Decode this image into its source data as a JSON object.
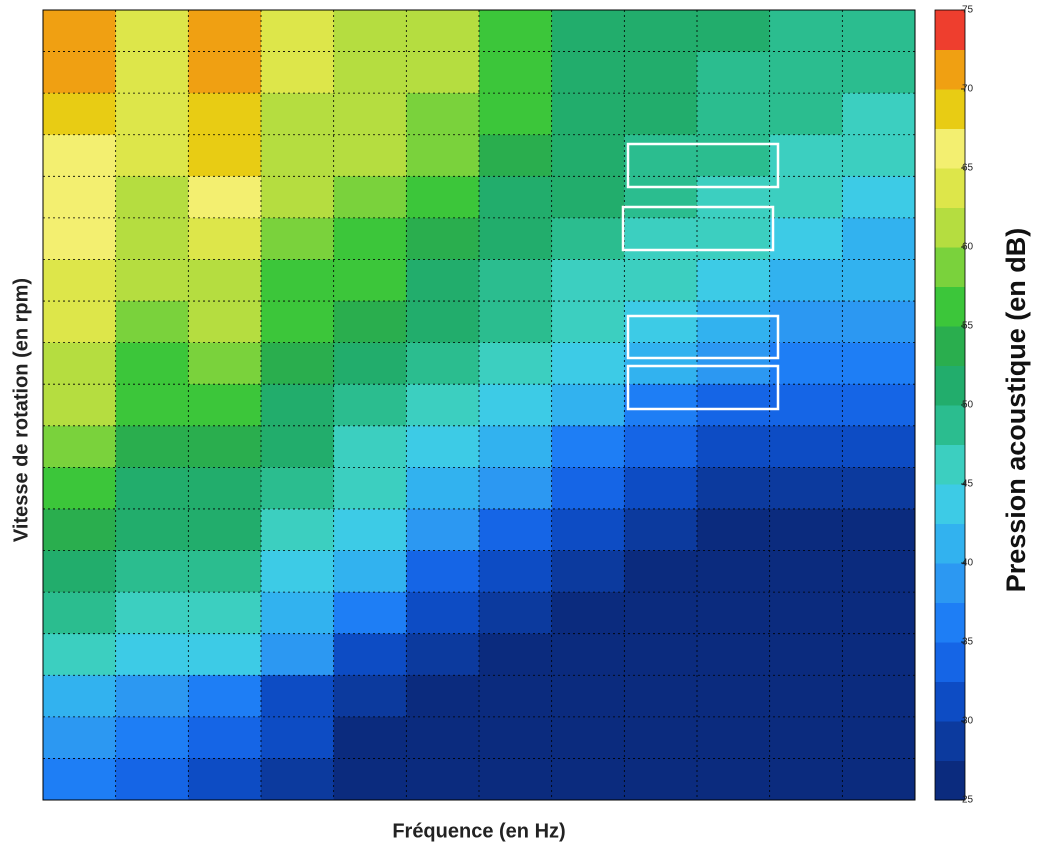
{
  "chart_data": {
    "type": "heatmap",
    "x_label": "Fréquence (en Hz)",
    "y_label": "Vitesse de rotation (en rpm)",
    "colorbar_label": "Pression acoustique (en dB)",
    "zlim": [
      25,
      75
    ],
    "zticks": [
      25,
      30,
      35,
      40,
      45,
      50,
      55,
      60,
      65,
      70,
      75
    ],
    "grid": true,
    "colorscale": [
      "#0b2b7e",
      "#0c3a9e",
      "#0d4cc4",
      "#1565e6",
      "#1e7ef5",
      "#2c98f2",
      "#32b2ef",
      "#3dcbe6",
      "#3ccfc0",
      "#2bbd8f",
      "#22ad6c",
      "#2aae4e",
      "#3cc63a",
      "#7ad23c",
      "#b5dd40",
      "#dde64a",
      "#f3ef70",
      "#e8cc14",
      "#f0a012",
      "#ee3e2e"
    ],
    "z": [
      [
        70,
        64,
        70,
        63,
        62,
        60,
        57,
        52,
        50,
        50,
        49,
        48
      ],
      [
        70,
        64,
        70,
        63,
        62,
        60,
        56,
        51,
        50,
        49,
        49,
        48
      ],
      [
        68,
        63,
        69,
        62,
        61,
        59,
        55,
        50,
        50,
        48,
        48,
        47
      ],
      [
        67,
        63,
        68,
        62,
        60,
        58,
        54,
        50,
        49,
        48,
        47,
        45
      ],
      [
        66,
        62,
        66,
        60,
        58,
        56,
        52,
        50,
        48,
        47,
        45,
        44
      ],
      [
        65,
        62,
        64,
        58,
        57,
        54,
        50,
        49,
        47,
        45,
        43,
        42
      ],
      [
        64,
        60,
        62,
        57,
        55,
        52,
        49,
        47,
        45,
        43,
        42,
        40
      ],
      [
        63,
        58,
        60,
        56,
        53,
        50,
        48,
        45,
        43,
        41,
        39,
        38
      ],
      [
        62,
        57,
        58,
        54,
        51,
        48,
        46,
        43,
        40,
        38,
        36,
        35
      ],
      [
        60,
        55,
        56,
        52,
        49,
        46,
        44,
        40,
        36,
        34,
        33,
        33
      ],
      [
        58,
        54,
        54,
        50,
        47,
        44,
        41,
        36,
        33,
        31,
        30,
        30
      ],
      [
        56,
        52,
        52,
        48,
        45,
        42,
        38,
        33,
        30,
        28,
        28,
        28
      ],
      [
        54,
        50,
        50,
        46,
        43,
        38,
        34,
        30,
        28,
        27,
        27,
        27
      ],
      [
        52,
        48,
        48,
        44,
        40,
        34,
        30,
        28,
        27,
        26,
        26,
        27
      ],
      [
        48,
        46,
        46,
        42,
        36,
        30,
        28,
        27,
        26,
        26,
        26,
        26
      ],
      [
        45,
        44,
        43,
        38,
        32,
        28,
        27,
        26,
        26,
        26,
        26,
        26
      ],
      [
        40,
        38,
        36,
        32,
        28,
        27,
        26,
        26,
        26,
        26,
        26,
        26
      ],
      [
        38,
        36,
        34,
        30,
        27,
        26,
        26,
        26,
        26,
        26,
        26,
        26
      ],
      [
        35,
        34,
        32,
        28,
        26,
        26,
        26,
        26,
        26,
        26,
        26,
        26
      ]
    ]
  }
}
